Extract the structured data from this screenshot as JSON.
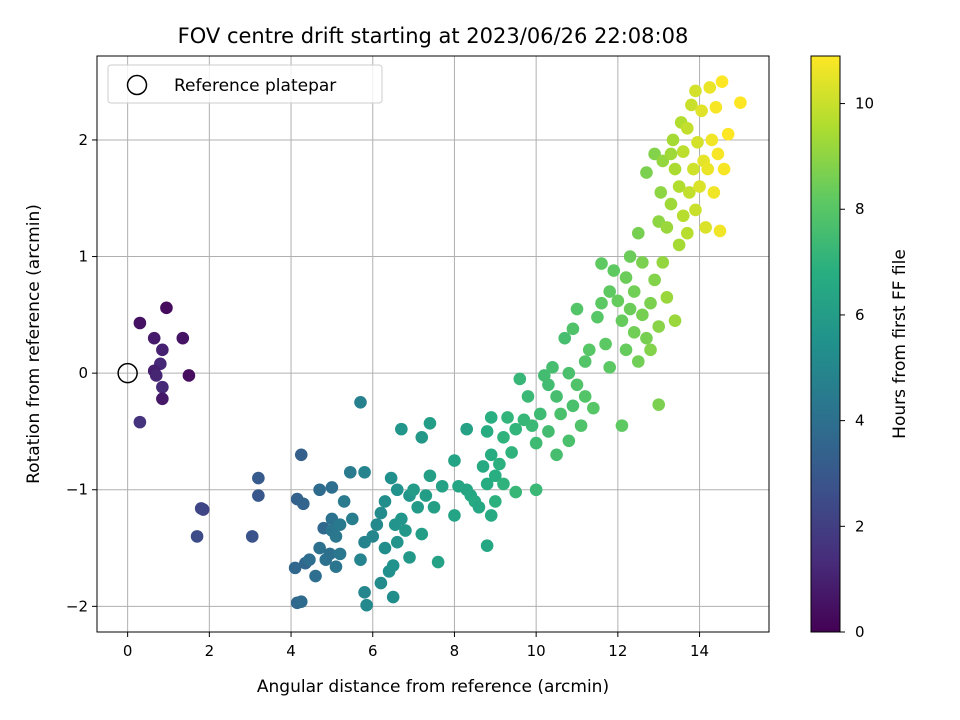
{
  "chart_data": {
    "type": "scatter",
    "title": "FOV centre drift starting at 2023/06/26 22:08:08",
    "xlabel": "Angular distance from reference (arcmin)",
    "ylabel": "Rotation from reference (arcmin)",
    "xlim": [
      -0.75,
      15.7
    ],
    "ylim": [
      -2.22,
      2.72
    ],
    "xticks": [
      0,
      2,
      4,
      6,
      8,
      10,
      12,
      14
    ],
    "yticks": [
      -2,
      -1,
      0,
      1,
      2
    ],
    "grid": true,
    "legend": {
      "position": "top-left",
      "entries": [
        "Reference platepar"
      ]
    },
    "reference_point": {
      "x": 0,
      "y": 0
    },
    "colorbar": {
      "label": "Hours from first FF file",
      "range": [
        0,
        10.9
      ],
      "ticks": [
        0,
        2,
        4,
        6,
        8,
        10
      ],
      "colormap": "viridis"
    },
    "points": [
      [
        0.3,
        0.43,
        0.5
      ],
      [
        0.95,
        0.56,
        0.3
      ],
      [
        0.65,
        0.3,
        0.8
      ],
      [
        1.35,
        0.3,
        0.6
      ],
      [
        0.85,
        0.2,
        1.0
      ],
      [
        0.8,
        0.08,
        1.2
      ],
      [
        0.65,
        0.02,
        0.9
      ],
      [
        0.7,
        -0.02,
        1.1
      ],
      [
        1.5,
        -0.02,
        0.4
      ],
      [
        0.85,
        -0.12,
        1.3
      ],
      [
        0.85,
        -0.22,
        0.7
      ],
      [
        0.3,
        -0.42,
        1.6
      ],
      [
        1.85,
        -1.17,
        2.2
      ],
      [
        1.8,
        -1.16,
        2.3
      ],
      [
        1.7,
        -1.4,
        2.5
      ],
      [
        3.05,
        -1.4,
        2.8
      ],
      [
        3.2,
        -0.9,
        3.1
      ],
      [
        3.2,
        -1.05,
        3.0
      ],
      [
        4.25,
        -0.7,
        3.3
      ],
      [
        4.15,
        -1.08,
        3.4
      ],
      [
        4.3,
        -1.12,
        3.5
      ],
      [
        4.1,
        -1.67,
        3.6
      ],
      [
        4.15,
        -1.97,
        3.7
      ],
      [
        4.25,
        -1.96,
        3.8
      ],
      [
        4.35,
        -1.63,
        3.6
      ],
      [
        4.45,
        -1.6,
        3.9
      ],
      [
        4.6,
        -1.74,
        3.9
      ],
      [
        4.7,
        -1.5,
        4.0
      ],
      [
        4.8,
        -1.33,
        3.7
      ],
      [
        4.7,
        -1.0,
        3.8
      ],
      [
        5.0,
        -0.98,
        3.9
      ],
      [
        4.85,
        -1.6,
        4.1
      ],
      [
        4.95,
        -1.55,
        4.0
      ],
      [
        5.0,
        -1.35,
        4.2
      ],
      [
        5.0,
        -1.25,
        4.1
      ],
      [
        5.1,
        -1.4,
        4.3
      ],
      [
        5.1,
        -1.66,
        4.2
      ],
      [
        5.2,
        -1.55,
        4.3
      ],
      [
        5.2,
        -1.3,
        4.4
      ],
      [
        5.3,
        -1.1,
        4.5
      ],
      [
        5.45,
        -0.85,
        4.5
      ],
      [
        5.5,
        -1.25,
        4.6
      ],
      [
        5.7,
        -0.25,
        4.7
      ],
      [
        5.8,
        -0.85,
        4.9
      ],
      [
        5.8,
        -1.45,
        4.8
      ],
      [
        5.7,
        -1.6,
        4.9
      ],
      [
        5.8,
        -1.88,
        5.0
      ],
      [
        5.85,
        -1.99,
        5.1
      ],
      [
        6.0,
        -1.4,
        5.0
      ],
      [
        6.1,
        -1.3,
        5.1
      ],
      [
        6.2,
        -1.2,
        5.2
      ],
      [
        6.3,
        -1.5,
        5.3
      ],
      [
        6.3,
        -1.1,
        5.3
      ],
      [
        6.2,
        -1.8,
        5.2
      ],
      [
        6.4,
        -1.7,
        5.4
      ],
      [
        6.45,
        -0.9,
        5.4
      ],
      [
        6.5,
        -1.65,
        5.5
      ],
      [
        6.6,
        -1.0,
        5.5
      ],
      [
        6.55,
        -1.3,
        5.6
      ],
      [
        6.6,
        -1.45,
        5.6
      ],
      [
        6.7,
        -1.25,
        5.7
      ],
      [
        6.7,
        -0.48,
        5.7
      ],
      [
        6.5,
        -1.92,
        5.3
      ],
      [
        6.8,
        -1.35,
        5.8
      ],
      [
        6.9,
        -1.05,
        5.7
      ],
      [
        6.9,
        -1.58,
        5.8
      ],
      [
        7.0,
        -1.0,
        5.9
      ],
      [
        7.1,
        -1.15,
        5.9
      ],
      [
        7.2,
        -1.38,
        6.0
      ],
      [
        7.2,
        -0.55,
        5.8
      ],
      [
        7.3,
        -1.05,
        6.0
      ],
      [
        7.4,
        -0.88,
        6.1
      ],
      [
        7.4,
        -0.43,
        6.0
      ],
      [
        7.6,
        -1.62,
        6.2
      ],
      [
        7.7,
        -0.97,
        6.2
      ],
      [
        7.5,
        -1.15,
        6.1
      ],
      [
        8.0,
        -1.22,
        6.3
      ],
      [
        8.0,
        -0.75,
        6.3
      ],
      [
        8.1,
        -0.97,
        6.4
      ],
      [
        8.3,
        -1.0,
        6.4
      ],
      [
        8.3,
        -0.48,
        6.2
      ],
      [
        8.4,
        -1.05,
        6.5
      ],
      [
        8.5,
        -1.1,
        6.6
      ],
      [
        8.6,
        -1.15,
        6.5
      ],
      [
        8.7,
        -0.8,
        6.6
      ],
      [
        8.8,
        -0.95,
        6.7
      ],
      [
        8.8,
        -0.5,
        6.7
      ],
      [
        8.9,
        -0.38,
        6.8
      ],
      [
        8.9,
        -0.7,
        6.7
      ],
      [
        8.8,
        -1.48,
        6.5
      ],
      [
        8.9,
        -1.22,
        6.6
      ],
      [
        9.0,
        -1.1,
        6.9
      ],
      [
        9.0,
        -0.88,
        6.8
      ],
      [
        9.1,
        -0.78,
        6.9
      ],
      [
        9.2,
        -0.95,
        7.0
      ],
      [
        9.2,
        -0.55,
        7.0
      ],
      [
        9.3,
        -0.38,
        7.1
      ],
      [
        9.4,
        -0.68,
        7.0
      ],
      [
        9.5,
        -0.48,
        7.1
      ],
      [
        9.5,
        -1.02,
        7.2
      ],
      [
        9.6,
        -0.05,
        7.2
      ],
      [
        9.7,
        -0.4,
        7.2
      ],
      [
        9.8,
        -0.2,
        7.3
      ],
      [
        9.9,
        -0.45,
        7.3
      ],
      [
        10.0,
        -0.6,
        7.4
      ],
      [
        10.0,
        -1.0,
        7.3
      ],
      [
        10.1,
        -0.35,
        7.4
      ],
      [
        10.2,
        -0.02,
        7.5
      ],
      [
        10.3,
        -0.5,
        7.5
      ],
      [
        10.3,
        -0.1,
        7.5
      ],
      [
        10.4,
        0.05,
        7.6
      ],
      [
        10.5,
        -0.2,
        7.6
      ],
      [
        10.5,
        -0.7,
        7.6
      ],
      [
        10.6,
        -0.35,
        7.7
      ],
      [
        10.7,
        0.3,
        7.6
      ],
      [
        10.8,
        0.0,
        7.7
      ],
      [
        10.8,
        -0.58,
        7.7
      ],
      [
        10.9,
        0.38,
        7.8
      ],
      [
        10.9,
        -0.28,
        7.7
      ],
      [
        11.0,
        -0.1,
        7.8
      ],
      [
        11.0,
        0.55,
        7.9
      ],
      [
        11.1,
        -0.45,
        7.8
      ],
      [
        11.2,
        0.1,
        7.9
      ],
      [
        11.2,
        -0.2,
        7.9
      ],
      [
        11.3,
        0.2,
        8.0
      ],
      [
        11.4,
        -0.3,
        8.0
      ],
      [
        11.5,
        0.48,
        8.0
      ],
      [
        11.6,
        0.6,
        8.1
      ],
      [
        11.7,
        0.25,
        8.1
      ],
      [
        11.6,
        0.94,
        8.2
      ],
      [
        11.8,
        0.05,
        8.1
      ],
      [
        11.9,
        0.88,
        8.2
      ],
      [
        11.8,
        0.7,
        8.2
      ],
      [
        12.0,
        0.62,
        8.3
      ],
      [
        12.1,
        0.45,
        8.3
      ],
      [
        12.1,
        -0.45,
        8.2
      ],
      [
        12.2,
        0.2,
        8.3
      ],
      [
        12.2,
        0.82,
        8.4
      ],
      [
        12.3,
        1.0,
        8.4
      ],
      [
        12.3,
        0.55,
        8.4
      ],
      [
        12.4,
        0.35,
        8.5
      ],
      [
        12.4,
        0.7,
        8.5
      ],
      [
        12.5,
        0.1,
        8.5
      ],
      [
        12.5,
        1.2,
        8.6
      ],
      [
        12.6,
        0.5,
        8.6
      ],
      [
        12.6,
        0.95,
        8.7
      ],
      [
        12.7,
        1.72,
        8.7
      ],
      [
        12.7,
        0.3,
        8.6
      ],
      [
        12.8,
        0.6,
        8.7
      ],
      [
        12.8,
        0.2,
        8.8
      ],
      [
        12.9,
        1.88,
        8.8
      ],
      [
        12.9,
        0.8,
        8.8
      ],
      [
        13.0,
        0.4,
        8.9
      ],
      [
        13.0,
        1.3,
        9.0
      ],
      [
        13.0,
        -0.27,
        8.7
      ],
      [
        13.05,
        1.55,
        9.0
      ],
      [
        13.1,
        0.95,
        9.1
      ],
      [
        13.1,
        1.82,
        9.1
      ],
      [
        13.2,
        0.65,
        9.2
      ],
      [
        13.2,
        1.25,
        9.2
      ],
      [
        13.3,
        1.45,
        9.3
      ],
      [
        13.3,
        1.88,
        9.3
      ],
      [
        13.35,
        2.0,
        9.4
      ],
      [
        13.4,
        0.45,
        9.2
      ],
      [
        13.4,
        1.75,
        9.5
      ],
      [
        13.5,
        1.1,
        9.4
      ],
      [
        13.5,
        1.6,
        9.6
      ],
      [
        13.55,
        2.15,
        9.6
      ],
      [
        13.6,
        1.35,
        9.7
      ],
      [
        13.6,
        1.9,
        9.8
      ],
      [
        13.7,
        1.2,
        9.7
      ],
      [
        13.7,
        2.1,
        9.9
      ],
      [
        13.75,
        1.55,
        9.9
      ],
      [
        13.8,
        2.3,
        10.0
      ],
      [
        13.85,
        1.75,
        10.1
      ],
      [
        13.9,
        1.4,
        10.0
      ],
      [
        13.9,
        2.42,
        10.2
      ],
      [
        13.95,
        1.98,
        10.2
      ],
      [
        14.0,
        1.6,
        10.3
      ],
      [
        14.05,
        2.25,
        10.4
      ],
      [
        14.1,
        1.82,
        10.5
      ],
      [
        14.15,
        1.25,
        10.3
      ],
      [
        14.2,
        1.75,
        10.6
      ],
      [
        14.25,
        2.45,
        10.6
      ],
      [
        14.3,
        2.0,
        10.7
      ],
      [
        14.35,
        1.55,
        10.7
      ],
      [
        14.4,
        2.28,
        10.8
      ],
      [
        14.45,
        1.88,
        10.8
      ],
      [
        14.5,
        1.22,
        10.7
      ],
      [
        14.55,
        2.5,
        10.9
      ],
      [
        14.6,
        1.75,
        10.8
      ],
      [
        14.7,
        2.05,
        10.9
      ],
      [
        15.0,
        2.32,
        10.9
      ]
    ]
  }
}
